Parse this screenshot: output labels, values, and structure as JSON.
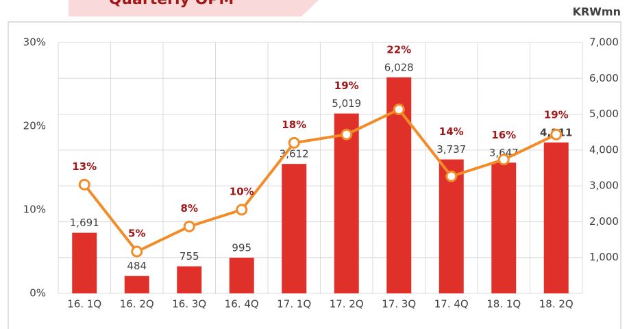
{
  "chart_data": {
    "type": "bar_line",
    "title": "Quarterly OPM",
    "unit_label": "KRWmn",
    "categories": [
      "16. 1Q",
      "16. 2Q",
      "16. 3Q",
      "16. 4Q",
      "17. 1Q",
      "17. 2Q",
      "17. 3Q",
      "17. 4Q",
      "18. 1Q",
      "18. 2Q"
    ],
    "series": [
      {
        "type": "bar",
        "axis": "y2",
        "color": "#e0302a",
        "values": [
          1691,
          484,
          755,
          995,
          3612,
          5019,
          6028,
          3737,
          3647,
          4211
        ],
        "value_labels": [
          "1,691",
          "484",
          "755",
          "995",
          "3,612",
          "5,019",
          "6,028",
          "3,737",
          "3,647",
          "4,211"
        ]
      },
      {
        "type": "line",
        "axis": "y",
        "color": "#f28c28",
        "values": [
          13,
          5,
          8,
          10,
          18,
          19,
          22,
          14,
          16,
          19
        ],
        "value_labels": [
          "13%",
          "5%",
          "8%",
          "10%",
          "18%",
          "19%",
          "22%",
          "14%",
          "16%",
          "19%"
        ]
      }
    ],
    "ylim": [
      0,
      30
    ],
    "yticks": [
      {
        "value": 0,
        "label": "0%"
      },
      {
        "value": 10,
        "label": "10%"
      },
      {
        "value": 20,
        "label": "20%"
      },
      {
        "value": 30,
        "label": "30%"
      }
    ],
    "y2lim": [
      0,
      7000
    ],
    "y2ticks": [
      {
        "value": 1000,
        "label": "1,000"
      },
      {
        "value": 2000,
        "label": "2,000"
      },
      {
        "value": 3000,
        "label": "3,000"
      },
      {
        "value": 4000,
        "label": "4,000"
      },
      {
        "value": 5000,
        "label": "5,000"
      },
      {
        "value": 6000,
        "label": "6,000"
      },
      {
        "value": 7000,
        "label": "7,000"
      }
    ],
    "grid": true
  }
}
